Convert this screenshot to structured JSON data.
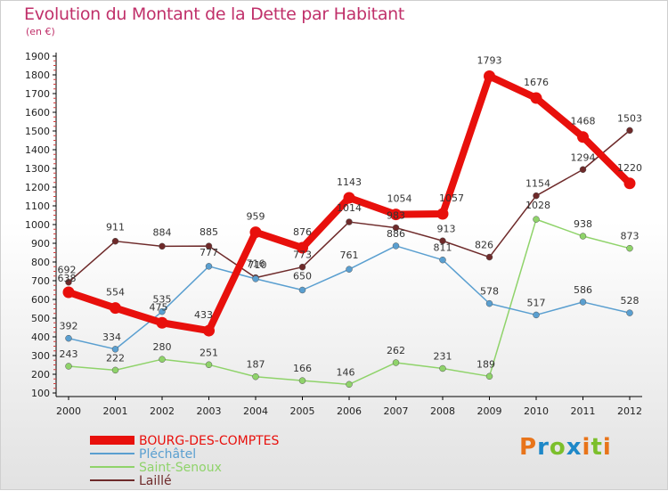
{
  "title": "Evolution du Montant de la Dette par Habitant",
  "unit_label": "(en €)",
  "brand": "Proxiti",
  "brand_colors": [
    "#e8741a",
    "#1e88c8",
    "#7cbf2c",
    "#1e88c8",
    "#e8741a",
    "#7cbf2c",
    "#e8741a"
  ],
  "chart_data": {
    "type": "line",
    "title": "Evolution du Montant de la Dette par Habitant",
    "ylabel": "(en €)",
    "x": [
      "2000",
      "2001",
      "2002",
      "2003",
      "2004",
      "2005",
      "2006",
      "2007",
      "2008",
      "2009",
      "2010",
      "2011",
      "2012"
    ],
    "ylim": [
      100,
      1900
    ],
    "yticks": [
      100,
      200,
      300,
      400,
      500,
      600,
      700,
      800,
      900,
      1000,
      1100,
      1200,
      1300,
      1400,
      1500,
      1600,
      1700,
      1800,
      1900
    ],
    "grid": false,
    "legend_position": "bottom-left",
    "series": [
      {
        "name": "BOURG-DES-COMPTES",
        "color": "#e8100c",
        "values": [
          638,
          554,
          475,
          433,
          959,
          876,
          1143,
          1054,
          1057,
          1793,
          1676,
          1468,
          1220
        ]
      },
      {
        "name": "Pléchâtel",
        "color": "#5a9fd0",
        "values": [
          392,
          334,
          535,
          777,
          710,
          650,
          761,
          886,
          811,
          578,
          517,
          586,
          528
        ]
      },
      {
        "name": "Saint-Senoux",
        "color": "#8fd36a",
        "values": [
          243,
          222,
          280,
          251,
          187,
          166,
          146,
          262,
          231,
          189,
          1028,
          938,
          873
        ]
      },
      {
        "name": "Laillé",
        "color": "#6e2a2a",
        "values": [
          692,
          911,
          884,
          885,
          716,
          773,
          1014,
          983,
          913,
          826,
          1154,
          1294,
          1503
        ]
      }
    ]
  }
}
